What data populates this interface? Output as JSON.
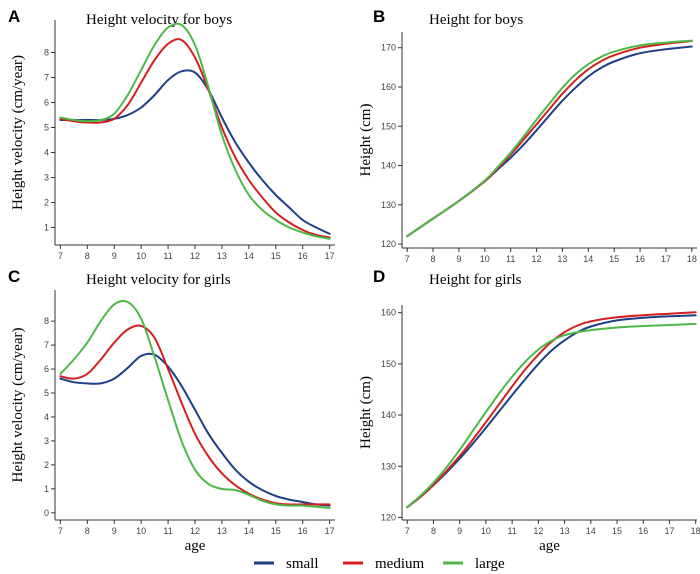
{
  "colors": {
    "small": "#1f3f86",
    "medium": "#d42020",
    "large": "#4db848"
  },
  "legend": [
    {
      "key": "small",
      "label": "small"
    },
    {
      "key": "medium",
      "label": "medium"
    },
    {
      "key": "large",
      "label": "large"
    }
  ],
  "chart_data": [
    {
      "type": "line",
      "panel": "A",
      "title": "Height velocity for boys",
      "xlabel": "",
      "ylabel": "Height velocity (cm/year)",
      "xlim": [
        6.8,
        17.2
      ],
      "ylim": [
        0.3,
        9.3
      ],
      "xticks": [
        7,
        8,
        9,
        10,
        11,
        12,
        13,
        14,
        15,
        16,
        17
      ],
      "yticks": [
        1,
        2,
        3,
        4,
        5,
        6,
        7,
        8
      ],
      "series": [
        {
          "name": "small",
          "x": [
            7,
            7.5,
            8,
            8.5,
            9,
            9.5,
            10,
            10.5,
            11,
            11.5,
            12,
            12.5,
            13,
            13.5,
            14,
            14.5,
            15,
            15.5,
            16,
            16.5,
            17
          ],
          "y": [
            5.3,
            5.3,
            5.3,
            5.3,
            5.35,
            5.5,
            5.8,
            6.3,
            6.9,
            7.25,
            7.2,
            6.5,
            5.4,
            4.4,
            3.6,
            2.9,
            2.3,
            1.8,
            1.3,
            1.0,
            0.75
          ]
        },
        {
          "name": "medium",
          "x": [
            7,
            7.5,
            8,
            8.5,
            9,
            9.5,
            10,
            10.5,
            11,
            11.5,
            12,
            12.5,
            13,
            13.5,
            14,
            14.5,
            15,
            15.5,
            16,
            16.5,
            17
          ],
          "y": [
            5.35,
            5.25,
            5.2,
            5.2,
            5.35,
            5.9,
            6.8,
            7.7,
            8.35,
            8.5,
            7.8,
            6.5,
            5.0,
            3.8,
            2.9,
            2.2,
            1.6,
            1.2,
            0.9,
            0.7,
            0.6
          ]
        },
        {
          "name": "large",
          "x": [
            7,
            7.5,
            8,
            8.5,
            9,
            9.5,
            10,
            10.5,
            11,
            11.5,
            12,
            12.5,
            13,
            13.5,
            14,
            14.5,
            15,
            15.5,
            16,
            16.5,
            17
          ],
          "y": [
            5.4,
            5.3,
            5.25,
            5.3,
            5.55,
            6.3,
            7.3,
            8.3,
            9.0,
            9.1,
            8.3,
            6.6,
            4.7,
            3.3,
            2.3,
            1.7,
            1.3,
            1.0,
            0.8,
            0.65,
            0.55
          ]
        }
      ]
    },
    {
      "type": "line",
      "panel": "B",
      "title": "Height for boys",
      "xlabel": "",
      "ylabel": "Height (cm)",
      "xlim": [
        6.8,
        18.2
      ],
      "ylim": [
        119,
        174
      ],
      "xticks": [
        7,
        8,
        9,
        10,
        11,
        12,
        13,
        14,
        15,
        16,
        17,
        18
      ],
      "yticks": [
        120,
        130,
        140,
        150,
        160,
        170
      ],
      "series": [
        {
          "name": "small",
          "x": [
            7,
            8,
            9,
            10,
            10.5,
            11,
            11.5,
            12,
            12.5,
            13,
            13.5,
            14,
            14.5,
            15,
            16,
            17,
            18
          ],
          "y": [
            122,
            126.5,
            131,
            136,
            139,
            142,
            145.3,
            149,
            152.8,
            156.5,
            159.8,
            162.7,
            164.9,
            166.5,
            168.6,
            169.6,
            170.3
          ]
        },
        {
          "name": "medium",
          "x": [
            7,
            8,
            9,
            10,
            10.5,
            11,
            11.5,
            12,
            12.5,
            13,
            13.5,
            14,
            14.5,
            15,
            16,
            17,
            18
          ],
          "y": [
            122,
            126.5,
            131,
            136,
            139.3,
            142.8,
            146.6,
            150.5,
            154.4,
            158.3,
            161.7,
            164.5,
            166.6,
            168.1,
            170.0,
            171.0,
            171.7
          ]
        },
        {
          "name": "large",
          "x": [
            7,
            8,
            9,
            10,
            10.5,
            11,
            11.5,
            12,
            12.5,
            13,
            13.5,
            14,
            14.5,
            15,
            16,
            17,
            18
          ],
          "y": [
            122,
            126.5,
            131,
            136.2,
            139.6,
            143.3,
            147.4,
            151.7,
            155.8,
            159.8,
            163.2,
            165.8,
            167.7,
            169.0,
            170.6,
            171.3,
            171.8
          ]
        }
      ]
    },
    {
      "type": "line",
      "panel": "C",
      "title": "Height velocity for girls",
      "xlabel": "age",
      "ylabel": "Height velocity (cm/year)",
      "xlim": [
        6.8,
        17.2
      ],
      "ylim": [
        -0.3,
        9.3
      ],
      "xticks": [
        7,
        8,
        9,
        10,
        11,
        12,
        13,
        14,
        15,
        16,
        17
      ],
      "yticks": [
        0,
        1,
        2,
        3,
        4,
        5,
        6,
        7,
        8
      ],
      "series": [
        {
          "name": "small",
          "x": [
            7,
            7.5,
            8,
            8.5,
            9,
            9.5,
            10,
            10.5,
            11,
            11.5,
            12,
            12.5,
            13,
            13.5,
            14,
            14.5,
            15,
            15.5,
            16,
            16.5,
            17
          ],
          "y": [
            5.6,
            5.45,
            5.4,
            5.4,
            5.6,
            6.05,
            6.55,
            6.6,
            6.1,
            5.3,
            4.3,
            3.3,
            2.5,
            1.8,
            1.3,
            0.95,
            0.7,
            0.55,
            0.45,
            0.35,
            0.3
          ]
        },
        {
          "name": "medium",
          "x": [
            7,
            7.5,
            8,
            8.5,
            9,
            9.5,
            10,
            10.5,
            11,
            11.5,
            12,
            12.5,
            13,
            13.5,
            14,
            14.5,
            15,
            15.5,
            16,
            16.5,
            17
          ],
          "y": [
            5.7,
            5.6,
            5.8,
            6.4,
            7.1,
            7.65,
            7.8,
            7.3,
            6.0,
            4.6,
            3.3,
            2.35,
            1.65,
            1.15,
            0.8,
            0.55,
            0.4,
            0.35,
            0.35,
            0.35,
            0.35
          ]
        },
        {
          "name": "large",
          "x": [
            7,
            7.5,
            8,
            8.5,
            9,
            9.5,
            10,
            10.5,
            11,
            11.5,
            12,
            12.5,
            13,
            13.5,
            14,
            14.5,
            15,
            15.5,
            16,
            16.5,
            17
          ],
          "y": [
            5.8,
            6.4,
            7.1,
            8.0,
            8.7,
            8.8,
            8.1,
            6.5,
            4.7,
            3.0,
            1.8,
            1.2,
            1.0,
            0.95,
            0.75,
            0.5,
            0.35,
            0.3,
            0.3,
            0.25,
            0.2
          ]
        }
      ]
    },
    {
      "type": "line",
      "panel": "D",
      "title": "Height for girls",
      "xlabel": "age",
      "ylabel": "Height (cm)",
      "xlim": [
        6.8,
        18.05
      ],
      "ylim": [
        119.5,
        161.5
      ],
      "xticks": [
        7,
        8,
        9,
        10,
        11,
        12,
        13,
        14,
        15,
        16,
        17,
        18
      ],
      "yticks": [
        120,
        130,
        140,
        150,
        160
      ],
      "series": [
        {
          "name": "small",
          "x": [
            7,
            7.5,
            8,
            8.5,
            9,
            9.5,
            10,
            10.5,
            11,
            11.5,
            12,
            12.5,
            13,
            13.5,
            14,
            15,
            16,
            17,
            18
          ],
          "y": [
            122,
            124,
            126.3,
            128.8,
            131.5,
            134.4,
            137.5,
            140.7,
            143.9,
            147.0,
            150.0,
            152.6,
            154.6,
            156.2,
            157.3,
            158.5,
            159.0,
            159.3,
            159.5
          ]
        },
        {
          "name": "medium",
          "x": [
            7,
            7.5,
            8,
            8.5,
            9,
            9.5,
            10,
            10.5,
            11,
            11.5,
            12,
            12.5,
            13,
            13.5,
            14,
            15,
            16,
            17,
            18
          ],
          "y": [
            122,
            124,
            126.4,
            129.1,
            132.0,
            135.2,
            138.6,
            142.1,
            145.6,
            148.9,
            151.8,
            154.3,
            156.2,
            157.5,
            158.3,
            159.1,
            159.5,
            159.8,
            160.1
          ]
        },
        {
          "name": "large",
          "x": [
            7,
            7.5,
            8,
            8.5,
            9,
            9.5,
            10,
            10.5,
            11,
            11.5,
            12,
            12.5,
            13,
            13.5,
            14,
            15,
            16,
            17,
            18
          ],
          "y": [
            122,
            124.2,
            126.8,
            129.8,
            133.2,
            136.9,
            140.6,
            144.2,
            147.5,
            150.4,
            152.8,
            154.5,
            155.6,
            156.2,
            156.6,
            157.1,
            157.4,
            157.6,
            157.8
          ]
        }
      ]
    }
  ]
}
